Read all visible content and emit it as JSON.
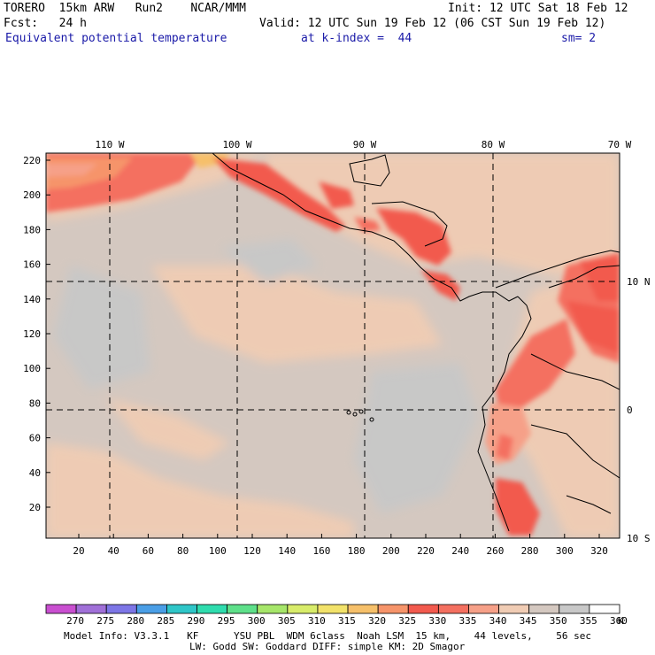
{
  "header": {
    "line1_left": "TORERO  15km ARW   Run2    NCAR/MMM",
    "line1_right": "Init: 12 UTC Sat 18 Feb 12",
    "line2_left": "Fcst:   24 h",
    "line2_right": "Valid: 12 UTC Sun 19 Feb 12 (06 CST Sun 19 Feb 12)",
    "field": "Equivalent potential temperature",
    "level": "at k-index =  44",
    "smooth": "sm= 2"
  },
  "map": {
    "lon_labels": [
      "110 W",
      "100 W",
      "90 W",
      "80 W",
      "70 W"
    ],
    "lat_labels": [
      "10 N",
      "0",
      "10 S"
    ],
    "y_ticks": [
      "220",
      "200",
      "180",
      "160",
      "140",
      "120",
      "100",
      "80",
      "60",
      "40",
      "20"
    ],
    "x_ticks": [
      "20",
      "40",
      "60",
      "80",
      "100",
      "120",
      "140",
      "160",
      "180",
      "200",
      "220",
      "240",
      "260",
      "280",
      "300",
      "320"
    ]
  },
  "colorbar": {
    "unit": "K",
    "levels": [
      "270",
      "275",
      "280",
      "285",
      "290",
      "295",
      "300",
      "305",
      "310",
      "315",
      "320",
      "325",
      "330",
      "335",
      "340",
      "345",
      "350",
      "355",
      "360"
    ],
    "colors": [
      "#c94fd0",
      "#a070d8",
      "#7d76e6",
      "#4a9ee6",
      "#2fc6c8",
      "#2fdcae",
      "#5ee08a",
      "#a6e66a",
      "#d8ec6a",
      "#f2e26a",
      "#f6c06a",
      "#f6946a",
      "#f25a4e",
      "#f47060",
      "#f6a088",
      "#f0ccb4",
      "#d4c8c0",
      "#c8c8c8",
      "#ffffff"
    ]
  },
  "footer": {
    "line1": "Model Info: V3.3.1   KF      YSU PBL  WDM 6class  Noah LSM  15 km,    44 levels,    56 sec",
    "line2": "LW: Godd SW: Goddard DIFF: simple KM: 2D Smagor"
  }
}
